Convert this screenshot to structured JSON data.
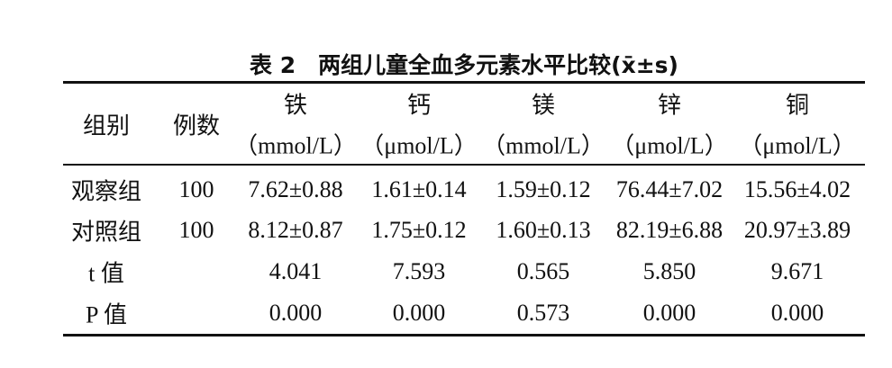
{
  "table": {
    "title": "表 2　两组儿童全血多元素水平比较(x̄±s)",
    "columns": [
      {
        "name": "组别"
      },
      {
        "name": "例数"
      },
      {
        "name": "铁",
        "unit": "（mmol/L）"
      },
      {
        "name": "钙",
        "unit": "（μmol/L）"
      },
      {
        "name": "镁",
        "unit": "（mmol/L）"
      },
      {
        "name": "锌",
        "unit": "（μmol/L）"
      },
      {
        "name": "铜",
        "unit": "（μmol/L）"
      }
    ],
    "rows": [
      {
        "label": "观察组",
        "n": "100",
        "values": [
          "7.62±0.88",
          "1.61±0.14",
          "1.59±0.12",
          "76.44±7.02",
          "15.56±4.02"
        ]
      },
      {
        "label": "对照组",
        "n": "100",
        "values": [
          "8.12±0.87",
          "1.75±0.12",
          "1.60±0.13",
          "82.19±6.88",
          "20.97±3.89"
        ]
      },
      {
        "label": "t 值",
        "values": [
          "4.041",
          "7.593",
          "0.565",
          "5.850",
          "9.671"
        ]
      },
      {
        "label": "P 值",
        "values": [
          "0.000",
          "0.000",
          "0.573",
          "0.000",
          "0.000"
        ]
      }
    ]
  }
}
